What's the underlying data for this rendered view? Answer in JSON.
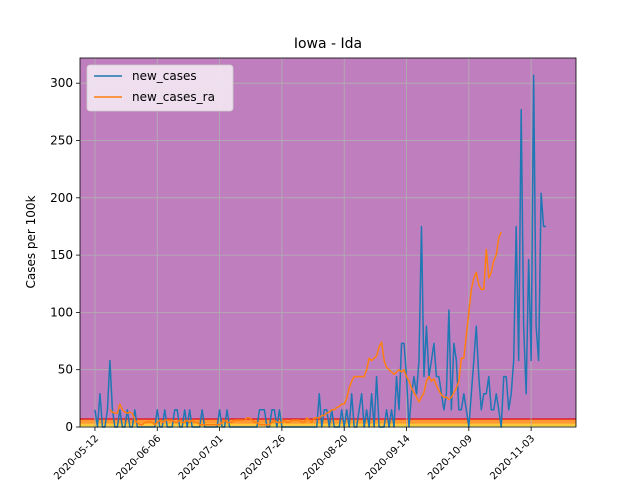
{
  "chart_data": {
    "type": "line",
    "title": "Iowa - Ida",
    "xlabel": "",
    "ylabel": "Cases per 100k",
    "grid": true,
    "legend_position": "upper-left",
    "background_color": "#bf7fbf",
    "xlim": [
      -6,
      193
    ],
    "ylim": [
      0,
      322
    ],
    "x_start_date": "2020-05-12",
    "x_start_index": 0,
    "x_ticks": [
      {
        "pos": 0,
        "label": "2020-05-12"
      },
      {
        "pos": 25,
        "label": "2020-06-06"
      },
      {
        "pos": 50,
        "label": "2020-07-01"
      },
      {
        "pos": 75,
        "label": "2020-07-26"
      },
      {
        "pos": 100,
        "label": "2020-08-20"
      },
      {
        "pos": 125,
        "label": "2020-09-14"
      },
      {
        "pos": 150,
        "label": "2020-10-09"
      },
      {
        "pos": 175,
        "label": "2020-11-03"
      }
    ],
    "y_ticks": [
      0,
      50,
      100,
      150,
      200,
      250,
      300
    ],
    "threshold_bands": [
      {
        "from": 0,
        "to": 1,
        "color": "#ffff66"
      },
      {
        "from": 1,
        "to": 3,
        "color": "#ffcc33"
      },
      {
        "from": 3,
        "to": 7,
        "color": "#ff9933"
      }
    ],
    "threshold_line": {
      "value": 7,
      "color": "#e0202a"
    },
    "series": [
      {
        "name": "new_cases",
        "color": "#1f77b4",
        "x_start": 0,
        "values": [
          15,
          0,
          29,
          0,
          0,
          15,
          58,
          15,
          0,
          0,
          15,
          0,
          0,
          15,
          0,
          0,
          15,
          0,
          0,
          0,
          0,
          0,
          0,
          0,
          0,
          15,
          0,
          0,
          15,
          0,
          0,
          0,
          15,
          15,
          0,
          0,
          15,
          0,
          15,
          0,
          0,
          0,
          0,
          15,
          0,
          0,
          0,
          0,
          0,
          0,
          15,
          0,
          0,
          15,
          0,
          0,
          0,
          0,
          0,
          0,
          0,
          0,
          0,
          0,
          0,
          0,
          15,
          15,
          15,
          0,
          0,
          15,
          15,
          0,
          15,
          0,
          0,
          0,
          0,
          0,
          0,
          0,
          0,
          0,
          0,
          0,
          0,
          0,
          0,
          0,
          29,
          0,
          15,
          15,
          0,
          15,
          0,
          0,
          0,
          15,
          0,
          15,
          0,
          29,
          0,
          0,
          15,
          29,
          0,
          15,
          0,
          29,
          0,
          44,
          0,
          0,
          0,
          15,
          0,
          15,
          0,
          44,
          15,
          73,
          73,
          44,
          0,
          29,
          44,
          29,
          58,
          175,
          44,
          88,
          44,
          58,
          73,
          44,
          44,
          29,
          15,
          29,
          102,
          15,
          73,
          58,
          15,
          15,
          29,
          15,
          0,
          29,
          58,
          88,
          44,
          15,
          29,
          29,
          44,
          15,
          15,
          29,
          15,
          0,
          44,
          44,
          15,
          29,
          58,
          175,
          58,
          277,
          88,
          29,
          146,
          58,
          307,
          88,
          58,
          204,
          175,
          175
        ],
        "values_note": "daily values from 2020-05-12 to 2020-11-10 (approximate read-out)"
      },
      {
        "name": "new_cases_ra",
        "color": "#ff7f0e",
        "x_start": 6,
        "values": [
          15,
          13,
          12,
          12,
          20,
          15,
          13,
          12,
          13,
          12,
          6,
          4,
          2,
          2,
          4,
          4,
          5,
          4,
          2,
          4,
          6,
          4,
          6,
          6,
          6,
          6,
          4,
          4,
          6,
          4,
          4,
          6,
          4,
          6,
          4,
          4,
          2,
          2,
          2,
          2,
          2,
          2,
          2,
          2,
          2,
          4,
          6,
          4,
          4,
          4,
          6,
          6,
          6,
          6,
          6,
          8,
          8,
          6,
          4,
          4,
          2,
          2,
          2,
          2,
          2,
          4,
          6,
          4,
          4,
          4,
          6,
          4,
          4,
          6,
          6,
          6,
          6,
          4,
          4,
          8,
          6,
          4,
          8,
          8,
          8,
          10,
          10,
          12,
          13,
          15,
          15,
          17,
          18,
          20,
          20,
          25,
          34,
          40,
          44,
          44,
          44,
          44,
          44,
          50,
          60,
          58,
          60,
          62,
          70,
          74,
          58,
          52,
          50,
          48,
          46,
          48,
          50,
          48,
          50,
          44,
          40,
          34,
          30,
          26,
          22,
          26,
          30,
          40,
          44,
          40,
          42,
          36,
          32,
          28,
          26,
          26,
          24,
          26,
          30,
          34,
          40,
          60,
          60,
          80,
          100,
          120,
          130,
          135,
          124,
          120,
          120,
          155,
          130,
          135,
          145,
          150,
          165,
          170
        ],
        "values_note": "rolling average, approximate"
      }
    ]
  }
}
